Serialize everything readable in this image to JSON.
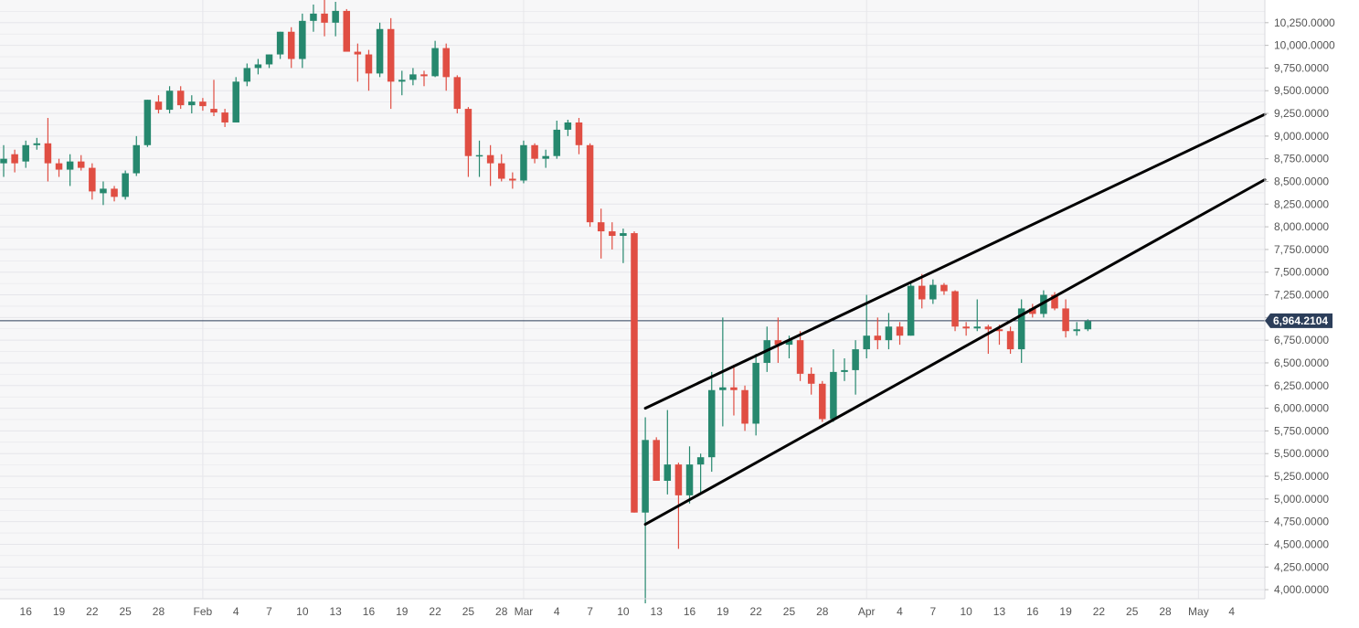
{
  "colors": {
    "up": "#26886e",
    "down": "#e04e43",
    "plot_bg": "#f7f7f8",
    "grid": "#e6e6ea",
    "axis_text": "#555555",
    "price_line": "#2c3e5a",
    "price_tag_bg": "#2c3e5a",
    "price_tag_text": "#ffffff",
    "trendline": "#000000"
  },
  "chart_data": {
    "type": "candlestick",
    "title": "",
    "xlabel": "",
    "ylabel": "",
    "ylim": [
      3900,
      10500
    ],
    "xlim": [
      "2020-01-14",
      "2020-05-07"
    ],
    "grid": true,
    "x_tick_labels": [
      {
        "date": "2020-01-16",
        "label": "16"
      },
      {
        "date": "2020-01-19",
        "label": "19"
      },
      {
        "date": "2020-01-22",
        "label": "22"
      },
      {
        "date": "2020-01-25",
        "label": "25"
      },
      {
        "date": "2020-01-28",
        "label": "28"
      },
      {
        "date": "2020-02-01",
        "label": "Feb"
      },
      {
        "date": "2020-02-04",
        "label": "4"
      },
      {
        "date": "2020-02-07",
        "label": "7"
      },
      {
        "date": "2020-02-10",
        "label": "10"
      },
      {
        "date": "2020-02-13",
        "label": "13"
      },
      {
        "date": "2020-02-16",
        "label": "16"
      },
      {
        "date": "2020-02-19",
        "label": "19"
      },
      {
        "date": "2020-02-22",
        "label": "22"
      },
      {
        "date": "2020-02-25",
        "label": "25"
      },
      {
        "date": "2020-02-28",
        "label": "28"
      },
      {
        "date": "2020-03-01",
        "label": "Mar"
      },
      {
        "date": "2020-03-04",
        "label": "4"
      },
      {
        "date": "2020-03-07",
        "label": "7"
      },
      {
        "date": "2020-03-10",
        "label": "10"
      },
      {
        "date": "2020-03-13",
        "label": "13"
      },
      {
        "date": "2020-03-16",
        "label": "16"
      },
      {
        "date": "2020-03-19",
        "label": "19"
      },
      {
        "date": "2020-03-22",
        "label": "22"
      },
      {
        "date": "2020-03-25",
        "label": "25"
      },
      {
        "date": "2020-03-28",
        "label": "28"
      },
      {
        "date": "2020-04-01",
        "label": "Apr"
      },
      {
        "date": "2020-04-04",
        "label": "4"
      },
      {
        "date": "2020-04-07",
        "label": "7"
      },
      {
        "date": "2020-04-10",
        "label": "10"
      },
      {
        "date": "2020-04-13",
        "label": "13"
      },
      {
        "date": "2020-04-16",
        "label": "16"
      },
      {
        "date": "2020-04-19",
        "label": "19"
      },
      {
        "date": "2020-04-22",
        "label": "22"
      },
      {
        "date": "2020-04-25",
        "label": "25"
      },
      {
        "date": "2020-04-28",
        "label": "28"
      },
      {
        "date": "2020-05-01",
        "label": "May"
      },
      {
        "date": "2020-05-04",
        "label": "4"
      }
    ],
    "y_tick_labels": [
      {
        "value": 10250,
        "label": "10,250.0000"
      },
      {
        "value": 10000,
        "label": "10,000.0000"
      },
      {
        "value": 9750,
        "label": "9,750.0000"
      },
      {
        "value": 9500,
        "label": "9,500.0000"
      },
      {
        "value": 9250,
        "label": "9,250.0000"
      },
      {
        "value": 9000,
        "label": "9,000.0000"
      },
      {
        "value": 8750,
        "label": "8,750.0000"
      },
      {
        "value": 8500,
        "label": "8,500.0000"
      },
      {
        "value": 8250,
        "label": "8,250.0000"
      },
      {
        "value": 8000,
        "label": "8,000.0000"
      },
      {
        "value": 7750,
        "label": "7,750.0000"
      },
      {
        "value": 7500,
        "label": "7,500.0000"
      },
      {
        "value": 7250,
        "label": "7,250.0000"
      },
      {
        "value": 7000,
        "label": "7,000.0000"
      },
      {
        "value": 6750,
        "label": "6,750.0000"
      },
      {
        "value": 6500,
        "label": "6,500.0000"
      },
      {
        "value": 6250,
        "label": "6,250.0000"
      },
      {
        "value": 6000,
        "label": "6,000.0000"
      },
      {
        "value": 5750,
        "label": "5,750.0000"
      },
      {
        "value": 5500,
        "label": "5,500.0000"
      },
      {
        "value": 5250,
        "label": "5,250.0000"
      },
      {
        "value": 5000,
        "label": "5,000.0000"
      },
      {
        "value": 4750,
        "label": "4,750.0000"
      },
      {
        "value": 4500,
        "label": "4,500.0000"
      },
      {
        "value": 4250,
        "label": "4,250.0000"
      },
      {
        "value": 4000,
        "label": "4,000.0000"
      }
    ],
    "current_price": {
      "value": 6964.2104,
      "label": "6,964.2104"
    },
    "trendlines": [
      {
        "from": {
          "date": "2020-03-12",
          "value": 6000
        },
        "to": {
          "date": "2020-05-07",
          "value": 9240
        }
      },
      {
        "from": {
          "date": "2020-03-12",
          "value": 4720
        },
        "to": {
          "date": "2020-05-07",
          "value": 8520
        }
      }
    ],
    "candles": [
      {
        "date": "2020-01-14",
        "open": 8700,
        "high": 8900,
        "low": 8550,
        "close": 8750
      },
      {
        "date": "2020-01-15",
        "open": 8800,
        "high": 8850,
        "low": 8600,
        "close": 8700
      },
      {
        "date": "2020-01-16",
        "open": 8720,
        "high": 8950,
        "low": 8650,
        "close": 8900
      },
      {
        "date": "2020-01-17",
        "open": 8900,
        "high": 8980,
        "low": 8850,
        "close": 8920
      },
      {
        "date": "2020-01-18",
        "open": 8920,
        "high": 9200,
        "low": 8500,
        "close": 8700
      },
      {
        "date": "2020-01-19",
        "open": 8700,
        "high": 8750,
        "low": 8550,
        "close": 8630
      },
      {
        "date": "2020-01-20",
        "open": 8630,
        "high": 8800,
        "low": 8450,
        "close": 8720
      },
      {
        "date": "2020-01-21",
        "open": 8720,
        "high": 8790,
        "low": 8620,
        "close": 8650
      },
      {
        "date": "2020-01-22",
        "open": 8650,
        "high": 8700,
        "low": 8300,
        "close": 8390
      },
      {
        "date": "2020-01-23",
        "open": 8370,
        "high": 8500,
        "low": 8240,
        "close": 8420
      },
      {
        "date": "2020-01-24",
        "open": 8420,
        "high": 8450,
        "low": 8280,
        "close": 8330
      },
      {
        "date": "2020-01-25",
        "open": 8330,
        "high": 8620,
        "low": 8300,
        "close": 8590
      },
      {
        "date": "2020-01-26",
        "open": 8590,
        "high": 9000,
        "low": 8560,
        "close": 8900
      },
      {
        "date": "2020-01-27",
        "open": 8900,
        "high": 9400,
        "low": 8880,
        "close": 9400
      },
      {
        "date": "2020-01-28",
        "open": 9380,
        "high": 9450,
        "low": 9250,
        "close": 9290
      },
      {
        "date": "2020-01-29",
        "open": 9290,
        "high": 9550,
        "low": 9250,
        "close": 9500
      },
      {
        "date": "2020-01-30",
        "open": 9500,
        "high": 9550,
        "low": 9300,
        "close": 9340
      },
      {
        "date": "2020-01-31",
        "open": 9340,
        "high": 9450,
        "low": 9250,
        "close": 9380
      },
      {
        "date": "2020-02-01",
        "open": 9380,
        "high": 9420,
        "low": 9280,
        "close": 9330
      },
      {
        "date": "2020-02-02",
        "open": 9300,
        "high": 9620,
        "low": 9220,
        "close": 9260
      },
      {
        "date": "2020-02-03",
        "open": 9260,
        "high": 9300,
        "low": 9100,
        "close": 9150
      },
      {
        "date": "2020-02-04",
        "open": 9150,
        "high": 9650,
        "low": 9150,
        "close": 9600
      },
      {
        "date": "2020-02-05",
        "open": 9600,
        "high": 9800,
        "low": 9550,
        "close": 9750
      },
      {
        "date": "2020-02-06",
        "open": 9750,
        "high": 9850,
        "low": 9680,
        "close": 9790
      },
      {
        "date": "2020-02-07",
        "open": 9790,
        "high": 9900,
        "low": 9750,
        "close": 9900
      },
      {
        "date": "2020-02-08",
        "open": 9900,
        "high": 10150,
        "low": 9850,
        "close": 10150
      },
      {
        "date": "2020-02-09",
        "open": 10150,
        "high": 10200,
        "low": 9750,
        "close": 9850
      },
      {
        "date": "2020-02-10",
        "open": 9850,
        "high": 10350,
        "low": 9750,
        "close": 10270
      },
      {
        "date": "2020-02-11",
        "open": 10270,
        "high": 10450,
        "low": 10150,
        "close": 10350
      },
      {
        "date": "2020-02-12",
        "open": 10350,
        "high": 10500,
        "low": 10100,
        "close": 10250
      },
      {
        "date": "2020-02-13",
        "open": 10250,
        "high": 10480,
        "low": 10100,
        "close": 10380
      },
      {
        "date": "2020-02-14",
        "open": 10380,
        "high": 10400,
        "low": 9950,
        "close": 9930
      },
      {
        "date": "2020-02-15",
        "open": 9930,
        "high": 10020,
        "low": 9600,
        "close": 9900
      },
      {
        "date": "2020-02-16",
        "open": 9900,
        "high": 9950,
        "low": 9500,
        "close": 9690
      },
      {
        "date": "2020-02-17",
        "open": 9690,
        "high": 10250,
        "low": 9650,
        "close": 10180
      },
      {
        "date": "2020-02-18",
        "open": 10180,
        "high": 10300,
        "low": 9300,
        "close": 9600
      },
      {
        "date": "2020-02-19",
        "open": 9600,
        "high": 9720,
        "low": 9450,
        "close": 9620
      },
      {
        "date": "2020-02-20",
        "open": 9620,
        "high": 9750,
        "low": 9560,
        "close": 9680
      },
      {
        "date": "2020-02-21",
        "open": 9680,
        "high": 9720,
        "low": 9550,
        "close": 9660
      },
      {
        "date": "2020-02-22",
        "open": 9660,
        "high": 10050,
        "low": 9650,
        "close": 9970
      },
      {
        "date": "2020-02-23",
        "open": 9970,
        "high": 10020,
        "low": 9500,
        "close": 9650
      },
      {
        "date": "2020-02-24",
        "open": 9650,
        "high": 9670,
        "low": 9250,
        "close": 9300
      },
      {
        "date": "2020-02-25",
        "open": 9300,
        "high": 9320,
        "low": 8550,
        "close": 8780
      },
      {
        "date": "2020-02-26",
        "open": 8780,
        "high": 8950,
        "low": 8550,
        "close": 8790
      },
      {
        "date": "2020-02-27",
        "open": 8790,
        "high": 8900,
        "low": 8450,
        "close": 8700
      },
      {
        "date": "2020-02-28",
        "open": 8700,
        "high": 8800,
        "low": 8500,
        "close": 8530
      },
      {
        "date": "2020-02-29",
        "open": 8530,
        "high": 8600,
        "low": 8420,
        "close": 8510
      },
      {
        "date": "2020-03-01",
        "open": 8510,
        "high": 8950,
        "low": 8480,
        "close": 8900
      },
      {
        "date": "2020-03-02",
        "open": 8900,
        "high": 8920,
        "low": 8700,
        "close": 8750
      },
      {
        "date": "2020-03-03",
        "open": 8750,
        "high": 8850,
        "low": 8650,
        "close": 8780
      },
      {
        "date": "2020-03-04",
        "open": 8780,
        "high": 9170,
        "low": 8750,
        "close": 9070
      },
      {
        "date": "2020-03-05",
        "open": 9070,
        "high": 9180,
        "low": 9000,
        "close": 9150
      },
      {
        "date": "2020-03-06",
        "open": 9150,
        "high": 9200,
        "low": 8800,
        "close": 8900
      },
      {
        "date": "2020-03-07",
        "open": 8900,
        "high": 8920,
        "low": 8000,
        "close": 8050
      },
      {
        "date": "2020-03-08",
        "open": 8050,
        "high": 8200,
        "low": 7650,
        "close": 7950
      },
      {
        "date": "2020-03-09",
        "open": 7950,
        "high": 8050,
        "low": 7750,
        "close": 7900
      },
      {
        "date": "2020-03-10",
        "open": 7900,
        "high": 7980,
        "low": 7600,
        "close": 7930
      },
      {
        "date": "2020-03-11",
        "open": 7930,
        "high": 7950,
        "low": 4850,
        "close": 4850
      },
      {
        "date": "2020-03-12",
        "open": 4850,
        "high": 5900,
        "low": 3850,
        "close": 5650
      },
      {
        "date": "2020-03-13",
        "open": 5650,
        "high": 5680,
        "low": 5200,
        "close": 5200
      },
      {
        "date": "2020-03-14",
        "open": 5200,
        "high": 5980,
        "low": 5050,
        "close": 5380
      },
      {
        "date": "2020-03-15",
        "open": 5380,
        "high": 5400,
        "low": 4450,
        "close": 5040
      },
      {
        "date": "2020-03-16",
        "open": 5040,
        "high": 5580,
        "low": 4950,
        "close": 5380
      },
      {
        "date": "2020-03-17",
        "open": 5380,
        "high": 5500,
        "low": 5050,
        "close": 5460
      },
      {
        "date": "2020-03-18",
        "open": 5460,
        "high": 6400,
        "low": 5300,
        "close": 6200
      },
      {
        "date": "2020-03-19",
        "open": 6200,
        "high": 7000,
        "low": 5800,
        "close": 6230
      },
      {
        "date": "2020-03-20",
        "open": 6230,
        "high": 6480,
        "low": 5920,
        "close": 6200
      },
      {
        "date": "2020-03-21",
        "open": 6200,
        "high": 6250,
        "low": 5750,
        "close": 5830
      },
      {
        "date": "2020-03-22",
        "open": 5830,
        "high": 6600,
        "low": 5700,
        "close": 6500
      },
      {
        "date": "2020-03-23",
        "open": 6500,
        "high": 6900,
        "low": 6400,
        "close": 6750
      },
      {
        "date": "2020-03-24",
        "open": 6750,
        "high": 7000,
        "low": 6500,
        "close": 6700
      },
      {
        "date": "2020-03-25",
        "open": 6700,
        "high": 6800,
        "low": 6550,
        "close": 6750
      },
      {
        "date": "2020-03-26",
        "open": 6750,
        "high": 6850,
        "low": 6300,
        "close": 6380
      },
      {
        "date": "2020-03-27",
        "open": 6380,
        "high": 6450,
        "low": 6150,
        "close": 6270
      },
      {
        "date": "2020-03-28",
        "open": 6270,
        "high": 6300,
        "low": 5850,
        "close": 5880
      },
      {
        "date": "2020-03-29",
        "open": 5880,
        "high": 6650,
        "low": 5850,
        "close": 6400
      },
      {
        "date": "2020-03-30",
        "open": 6400,
        "high": 6550,
        "low": 6300,
        "close": 6420
      },
      {
        "date": "2020-03-31",
        "open": 6420,
        "high": 6750,
        "low": 6150,
        "close": 6650
      },
      {
        "date": "2020-04-01",
        "open": 6650,
        "high": 7250,
        "low": 6550,
        "close": 6800
      },
      {
        "date": "2020-04-02",
        "open": 6800,
        "high": 7000,
        "low": 6650,
        "close": 6750
      },
      {
        "date": "2020-04-03",
        "open": 6750,
        "high": 7050,
        "low": 6650,
        "close": 6900
      },
      {
        "date": "2020-04-04",
        "open": 6900,
        "high": 6950,
        "low": 6700,
        "close": 6800
      },
      {
        "date": "2020-04-05",
        "open": 6800,
        "high": 7400,
        "low": 6800,
        "close": 7350
      },
      {
        "date": "2020-04-06",
        "open": 7350,
        "high": 7480,
        "low": 7100,
        "close": 7200
      },
      {
        "date": "2020-04-07",
        "open": 7200,
        "high": 7420,
        "low": 7150,
        "close": 7360
      },
      {
        "date": "2020-04-08",
        "open": 7360,
        "high": 7380,
        "low": 7250,
        "close": 7290
      },
      {
        "date": "2020-04-09",
        "open": 7290,
        "high": 7300,
        "low": 6850,
        "close": 6900
      },
      {
        "date": "2020-04-10",
        "open": 6900,
        "high": 6950,
        "low": 6800,
        "close": 6880
      },
      {
        "date": "2020-04-11",
        "open": 6880,
        "high": 7200,
        "low": 6850,
        "close": 6900
      },
      {
        "date": "2020-04-12",
        "open": 6900,
        "high": 6920,
        "low": 6600,
        "close": 6870
      },
      {
        "date": "2020-04-13",
        "open": 6870,
        "high": 6920,
        "low": 6700,
        "close": 6850
      },
      {
        "date": "2020-04-14",
        "open": 6850,
        "high": 6900,
        "low": 6600,
        "close": 6650
      },
      {
        "date": "2020-04-15",
        "open": 6650,
        "high": 7200,
        "low": 6500,
        "close": 7100
      },
      {
        "date": "2020-04-16",
        "open": 7100,
        "high": 7150,
        "low": 7000,
        "close": 7040
      },
      {
        "date": "2020-04-17",
        "open": 7040,
        "high": 7300,
        "low": 7000,
        "close": 7250
      },
      {
        "date": "2020-04-18",
        "open": 7250,
        "high": 7280,
        "low": 7080,
        "close": 7100
      },
      {
        "date": "2020-04-19",
        "open": 7100,
        "high": 7200,
        "low": 6780,
        "close": 6850
      },
      {
        "date": "2020-04-20",
        "open": 6850,
        "high": 6950,
        "low": 6800,
        "close": 6870
      },
      {
        "date": "2020-04-21",
        "open": 6870,
        "high": 6980,
        "low": 6850,
        "close": 6960
      }
    ]
  }
}
